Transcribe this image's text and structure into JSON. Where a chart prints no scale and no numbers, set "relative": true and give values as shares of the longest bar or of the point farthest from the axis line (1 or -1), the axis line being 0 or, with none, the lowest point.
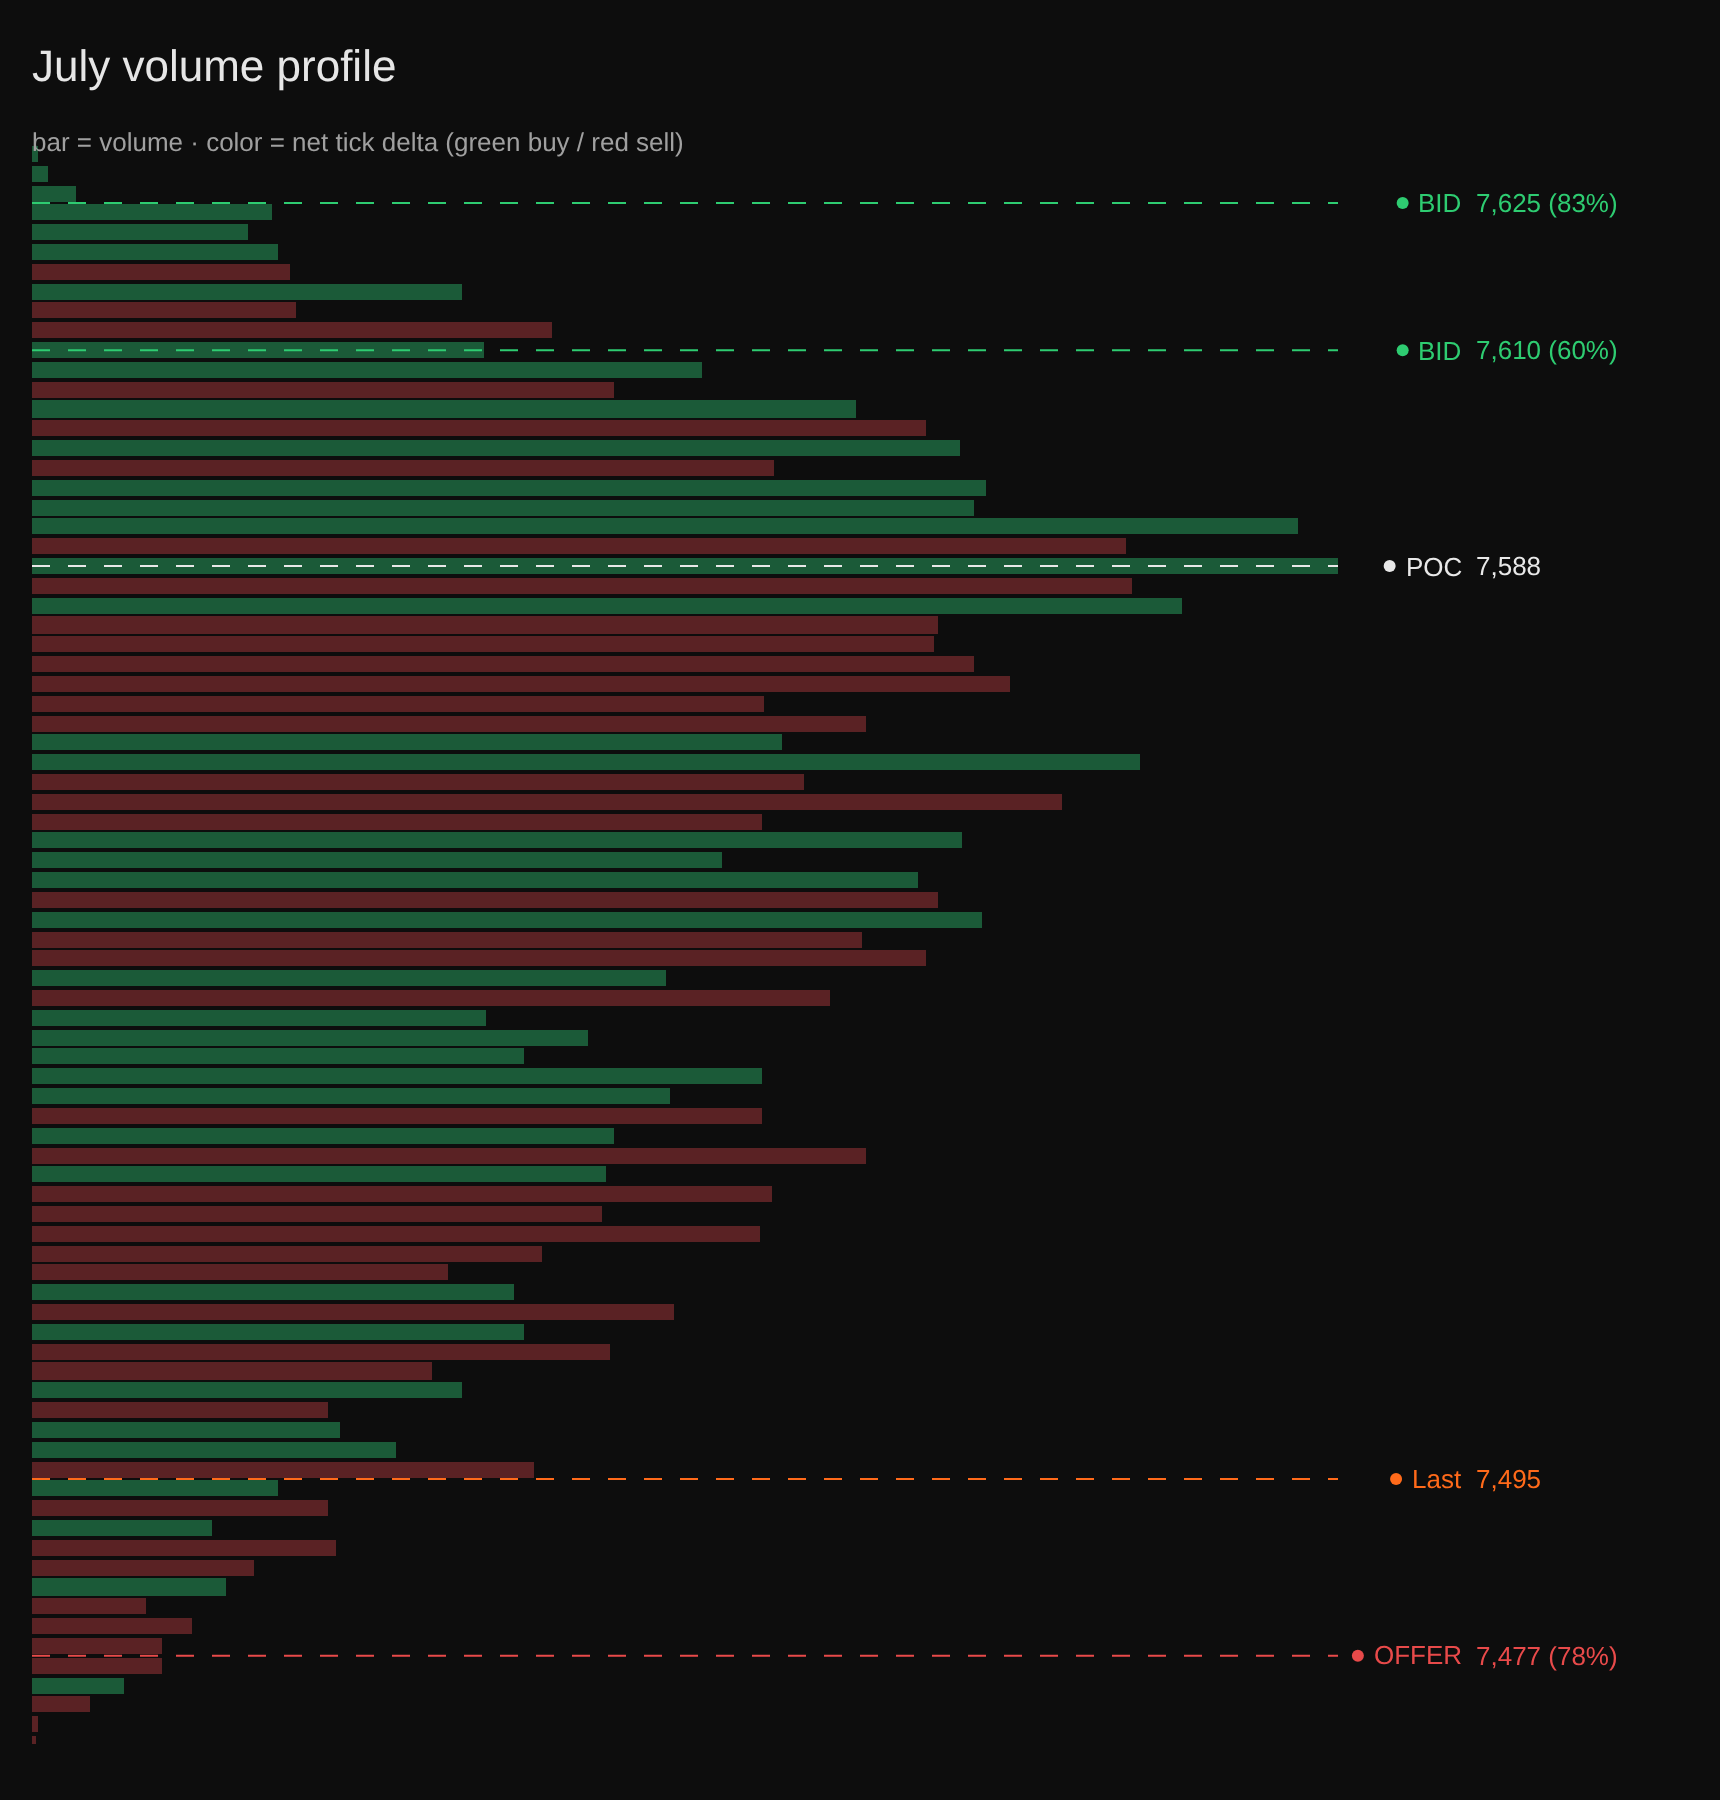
{
  "chart_data": {
    "type": "bar",
    "orientation": "horizontal",
    "relative": true,
    "title": "July volume profile",
    "subtitle": "bar = volume · color = net tick delta (green buy / red sell)",
    "x": [
      7630,
      7628,
      7626,
      7624,
      7622,
      7620,
      7618,
      7616,
      7614,
      7612,
      7610,
      7608,
      7606,
      7604,
      7602,
      7600,
      7598,
      7596,
      7594,
      7592,
      7590,
      7588,
      7586,
      7584,
      7582,
      7580,
      7578,
      7576,
      7574,
      7572,
      7570,
      7568,
      7566,
      7564,
      7562,
      7560,
      7558,
      7556,
      7554,
      7552,
      7550,
      7548,
      7546,
      7544,
      7542,
      7540,
      7538,
      7536,
      7534,
      7532,
      7530,
      7528,
      7526,
      7524,
      7522,
      7520,
      7518,
      7516,
      7514,
      7512,
      7510,
      7508,
      7506,
      7504,
      7502,
      7500,
      7498,
      7496,
      7494,
      7492,
      7490,
      7488,
      7486,
      7484,
      7482,
      7480,
      7478,
      7476,
      7474,
      7472,
      7470,
      7468
    ],
    "ylim": [
      7468,
      7631
    ],
    "yticks": [
      {
        "value": 7625,
        "label": "7,625 (83%)"
      },
      {
        "value": 7610,
        "label": "7,610 (60%)"
      },
      {
        "value": 7588,
        "label": "7,588"
      },
      {
        "value": 7495,
        "label": "7,495"
      },
      {
        "value": 7477,
        "label": "7,477 (78%)"
      }
    ],
    "values": [
      0.005,
      0.012,
      0.033,
      0.183,
      0.165,
      0.188,
      0.197,
      0.329,
      0.202,
      0.398,
      0.346,
      0.513,
      0.445,
      0.631,
      0.684,
      0.711,
      0.568,
      0.731,
      0.722,
      0.969,
      0.837,
      1,
      0.842,
      0.88,
      0.694,
      0.691,
      0.722,
      0.749,
      0.561,
      0.639,
      0.574,
      0.849,
      0.591,
      0.788,
      0.559,
      0.712,
      0.528,
      0.679,
      0.693,
      0.727,
      0.636,
      0.685,
      0.485,
      0.611,
      0.347,
      0.425,
      0.376,
      0.559,
      0.489,
      0.559,
      0.445,
      0.639,
      0.439,
      0.566,
      0.436,
      0.558,
      0.391,
      0.319,
      0.369,
      0.491,
      0.377,
      0.443,
      0.307,
      0.329,
      0.226,
      0.236,
      0.279,
      0.385,
      0.189,
      0.227,
      0.138,
      0.232,
      0.17,
      0.149,
      0.088,
      0.122,
      0.099,
      0.099,
      0.07,
      0.045,
      0.005,
      0.002
    ],
    "colors": [
      "#1b5a38",
      "#1b5a38",
      "#1b5a38",
      "#1b5a38",
      "#1b5a38",
      "#1b5a38",
      "#5a2224",
      "#1b5a38",
      "#5a2224",
      "#5a2224",
      "#1b5a38",
      "#1b5a38",
      "#5a2224",
      "#1b5a38",
      "#5a2224",
      "#1b5a38",
      "#5a2224",
      "#1b5a38",
      "#1b5a38",
      "#1b5a38",
      "#5a2224",
      "#1b5a38",
      "#5a2224",
      "#1b5a38",
      "#5a2224",
      "#5a2224",
      "#5a2224",
      "#5a2224",
      "#5a2224",
      "#5a2224",
      "#1b5a38",
      "#1b5a38",
      "#5a2224",
      "#5a2224",
      "#5a2224",
      "#1b5a38",
      "#1b5a38",
      "#1b5a38",
      "#5a2224",
      "#1b5a38",
      "#5a2224",
      "#5a2224",
      "#1b5a38",
      "#5a2224",
      "#1b5a38",
      "#1b5a38",
      "#1b5a38",
      "#1b5a38",
      "#1b5a38",
      "#5a2224",
      "#1b5a38",
      "#5a2224",
      "#1b5a38",
      "#5a2224",
      "#5a2224",
      "#5a2224",
      "#5a2224",
      "#5a2224",
      "#1b5a38",
      "#5a2224",
      "#1b5a38",
      "#5a2224",
      "#5a2224",
      "#1b5a38",
      "#5a2224",
      "#1b5a38",
      "#1b5a38",
      "#5a2224",
      "#1b5a38",
      "#5a2224",
      "#1b5a38",
      "#5a2224",
      "#5a2224",
      "#1b5a38",
      "#5a2224",
      "#5a2224",
      "#5a2224",
      "#5a2224",
      "#1b5a38",
      "#5a2224",
      "#5a2224",
      "#5a2224"
    ],
    "ref_lines": [
      {
        "axis": "y",
        "value": 7625,
        "label": "BID",
        "color": "#2ecc71",
        "line_style": "dashed"
      },
      {
        "axis": "y",
        "value": 7610,
        "label": "BID",
        "color": "#2ecc71",
        "line_style": "dashed"
      },
      {
        "axis": "y",
        "value": 7588,
        "label": "POC",
        "color": "#e8e8e8",
        "line_style": "dashed"
      },
      {
        "axis": "y",
        "value": 7495,
        "label": "Last",
        "color": "#ff6a1a",
        "line_style": "dashed"
      },
      {
        "axis": "y",
        "value": 7477,
        "label": "OFFER",
        "color": "#e84a4a",
        "line_style": "dashed"
      }
    ],
    "tick_labels": "y"
  }
}
